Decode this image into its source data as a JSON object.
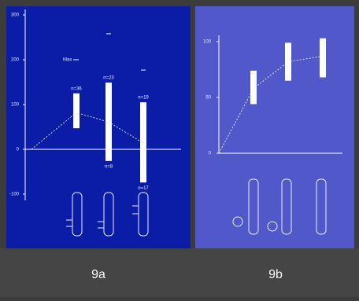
{
  "chart_data": [
    {
      "type": "range",
      "categories": [
        null,
        null,
        null,
        null
      ],
      "low": [
        null,
        47,
        -26,
        -74
      ],
      "high": [
        null,
        125,
        149,
        105
      ],
      "mean": [
        0,
        82,
        61,
        14
      ],
      "n_top": [
        null,
        "n=36",
        "n=23",
        "n=19"
      ],
      "n_bottom": [
        null,
        null,
        "n=8",
        "n=17"
      ],
      "max_label": "Max",
      "max_value": 200,
      "max_marks": [
        258,
        177
      ],
      "ylim": [
        -120,
        310
      ],
      "yticks": [
        300,
        200,
        100,
        0,
        -100
      ],
      "color": "#ffffff"
    },
    {
      "type": "range",
      "categories": [
        null,
        null,
        null,
        null
      ],
      "low": [
        null,
        44,
        65,
        68
      ],
      "high": [
        null,
        74,
        99,
        103
      ],
      "mean": [
        0,
        58,
        82,
        87
      ],
      "ylim": [
        0,
        130
      ],
      "yticks": [
        100,
        50,
        0
      ],
      "color": "#ffffff"
    }
  ],
  "captions": [
    "9a",
    "9b"
  ]
}
